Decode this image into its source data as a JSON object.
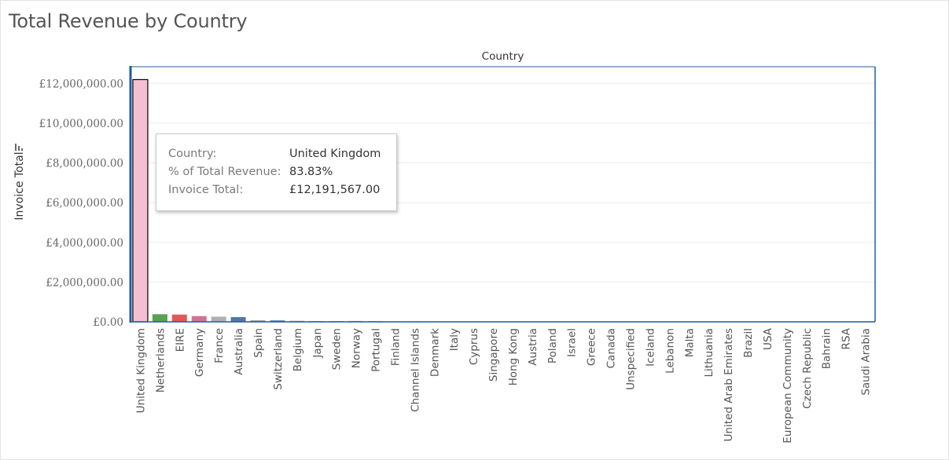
{
  "title": "Total Revenue by Country",
  "colors": {
    "axis": "#1f5f9e",
    "grid": "#ececec",
    "highlight_border": "#000000"
  },
  "tooltip": {
    "rows": [
      {
        "label": "Country:",
        "value": "United Kingdom"
      },
      {
        "label": "% of Total Revenue:",
        "value": "83.83%"
      },
      {
        "label": "Invoice Total:",
        "value": "£12,191,567.00"
      }
    ]
  },
  "icons": {
    "sort": "sort-descending-icon"
  },
  "chart_data": {
    "type": "bar",
    "title": "Total Revenue by Country",
    "xlabel": "Country",
    "ylabel": "Invoice Total",
    "ylim": [
      0,
      12800000
    ],
    "yticks": [
      0,
      2000000,
      4000000,
      6000000,
      8000000,
      10000000,
      12000000
    ],
    "ytick_labels": [
      "£0.00",
      "£2,000,000.00",
      "£4,000,000.00",
      "£6,000,000.00",
      "£8,000,000.00",
      "£10,000,000.00",
      "£12,000,000.00"
    ],
    "grid": true,
    "highlighted": "United Kingdom",
    "categories": [
      "United Kingdom",
      "Netherlands",
      "EIRE",
      "Germany",
      "France",
      "Australia",
      "Spain",
      "Switzerland",
      "Belgium",
      "Japan",
      "Sweden",
      "Norway",
      "Portugal",
      "Finland",
      "Channel Islands",
      "Denmark",
      "Italy",
      "Cyprus",
      "Singapore",
      "Hong Kong",
      "Austria",
      "Poland",
      "Israel",
      "Greece",
      "Canada",
      "Unspecified",
      "Iceland",
      "Lebanon",
      "Malta",
      "Lithuania",
      "United Arab Emirates",
      "Brazil",
      "USA",
      "European Community",
      "Czech Republic",
      "Bahrain",
      "RSA",
      "Saudi Arabia"
    ],
    "values": [
      12191567,
      384000,
      365000,
      290000,
      260000,
      237000,
      73000,
      72000,
      52000,
      40000,
      41000,
      44000,
      38000,
      23000,
      28000,
      21000,
      17000,
      18000,
      24000,
      15000,
      12000,
      9000,
      9000,
      5000,
      4000,
      4000,
      4000,
      2000,
      2000,
      2000,
      2000,
      1000,
      2000,
      1000,
      1000,
      600,
      400,
      200
    ],
    "bar_colors": [
      "#f4bfd2",
      "#59a14f",
      "#e15759",
      "#d37295",
      "#b0b0b0",
      "#4e79a7",
      "#8c8c8c",
      "#4e79a7",
      "#9c9c9c",
      "#9c9c9c",
      "#9c9c9c",
      "#9c9c9c",
      "#9c9c9c",
      "#9c9c9c",
      "#9c9c9c",
      "#9c9c9c",
      "#9c9c9c",
      "#9c9c9c",
      "#9c9c9c",
      "#9c9c9c",
      "#9c9c9c",
      "#9c9c9c",
      "#9c9c9c",
      "#9c9c9c",
      "#9c9c9c",
      "#9c9c9c",
      "#9c9c9c",
      "#9c9c9c",
      "#9c9c9c",
      "#9c9c9c",
      "#9c9c9c",
      "#9c9c9c",
      "#9c9c9c",
      "#9c9c9c",
      "#9c9c9c",
      "#9c9c9c",
      "#9c9c9c",
      "#9c9c9c"
    ]
  }
}
